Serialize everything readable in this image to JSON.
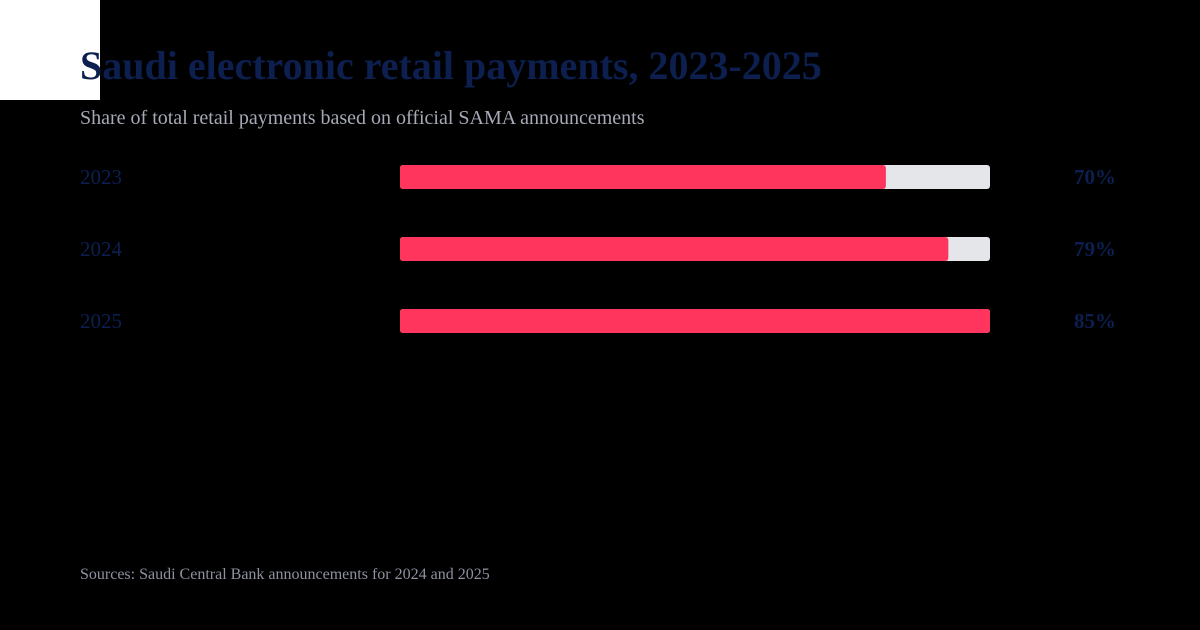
{
  "title": "Saudi electronic retail payments, 2023-2025",
  "subtitle": "Share of total retail payments based on official SAMA announcements",
  "source": "Sources: Saudi Central Bank announcements for 2024 and 2025",
  "colors": {
    "background": "#000000",
    "title": "#0c1f4f",
    "category_label": "#0c1f4f",
    "value_label": "#0c1f4f",
    "bar_fill": "#ff355e",
    "bar_track": "#e5e6ea",
    "subtitle": "#a6a9b6",
    "source": "#8e91a0"
  },
  "chart_data": {
    "type": "bar",
    "orientation": "horizontal",
    "categories": [
      "2023",
      "2024",
      "2025"
    ],
    "values": [
      70,
      79,
      85
    ],
    "value_labels": [
      "70%",
      "79%",
      "85%"
    ],
    "xlim": [
      0,
      85
    ],
    "grid": false
  }
}
